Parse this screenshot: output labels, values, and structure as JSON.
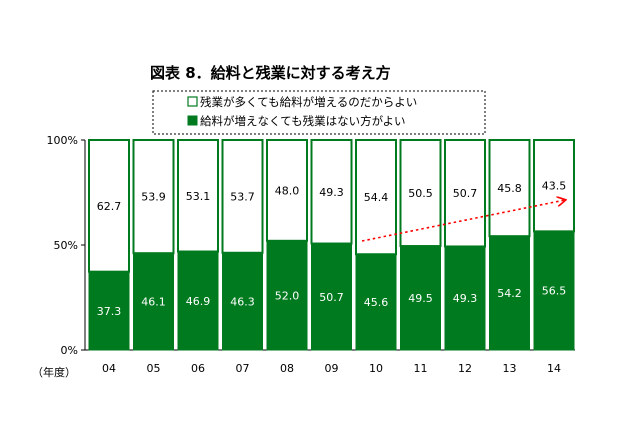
{
  "chart_data": {
    "type": "bar",
    "stacked": true,
    "percent": true,
    "title": "図表 8．給料と残業に対する考え方",
    "x_unit_label": "（年度）",
    "categories": [
      "04",
      "05",
      "06",
      "07",
      "08",
      "09",
      "10",
      "11",
      "12",
      "13",
      "14"
    ],
    "series": [
      {
        "name": "給料が増えなくても残業はない方がよい",
        "color": "#007a1e",
        "values": [
          37.3,
          46.1,
          46.9,
          46.3,
          52.0,
          50.7,
          45.6,
          49.5,
          49.3,
          54.2,
          56.5
        ],
        "labels": [
          "37.3",
          "46.1",
          "46.9",
          "46.3",
          "52.0",
          "50.7",
          "45.6",
          "49.5",
          "49.3",
          "54.2",
          "56.5"
        ]
      },
      {
        "name": "残業が多くても給料が増えるのだからよい",
        "color": "#ffffff",
        "values": [
          62.7,
          53.9,
          53.1,
          53.7,
          48.0,
          49.3,
          54.4,
          50.5,
          50.7,
          45.8,
          43.5
        ],
        "labels": [
          "62.7",
          "53.9",
          "53.1",
          "53.7",
          "48.0",
          "49.3",
          "54.4",
          "50.5",
          "50.7",
          "45.8",
          "43.5"
        ]
      }
    ],
    "yticks": [
      "0%",
      "50%",
      "100%"
    ],
    "ylim": [
      0,
      100
    ],
    "legend_position": "top",
    "annotation": "red dotted trend arrow from 10 to 14",
    "border_color": "#007a1e",
    "arrow_color": "#ff0000"
  }
}
